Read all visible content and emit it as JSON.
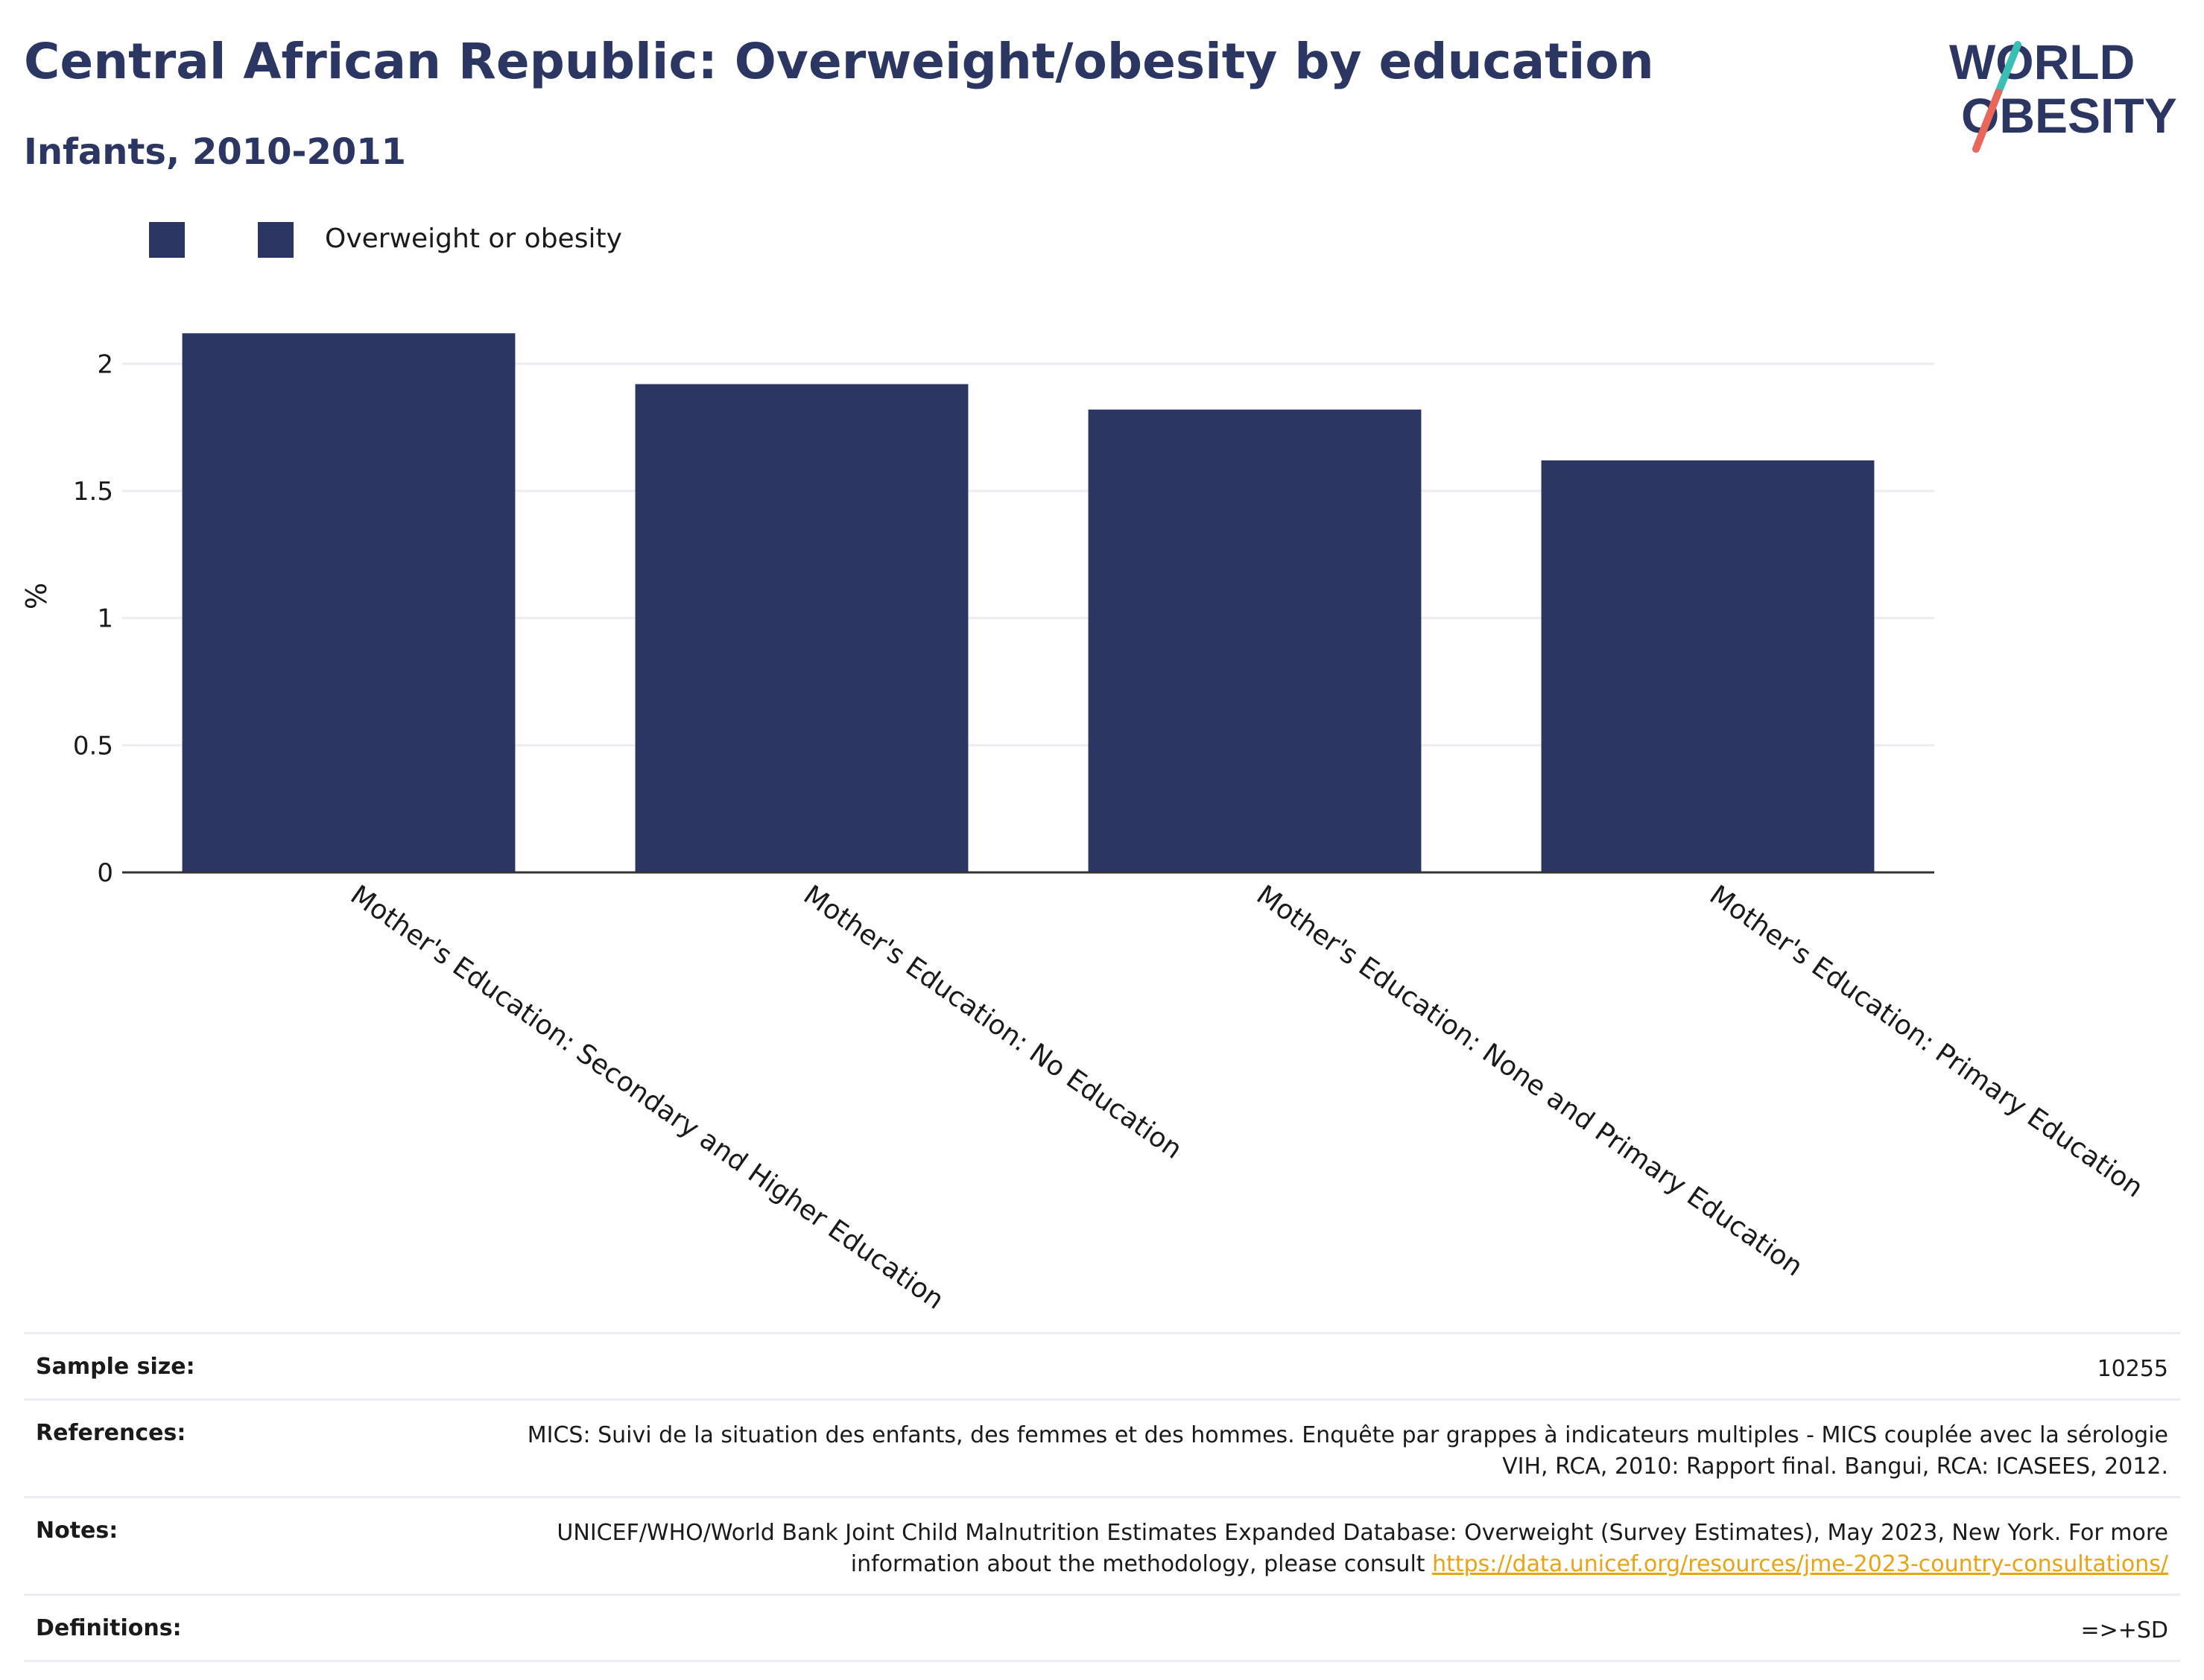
{
  "header": {
    "title": "Central African Republic: Overweight/obesity by education",
    "subtitle": "Infants, 2010-2011"
  },
  "logo": {
    "line1": "WORLD",
    "line2": "OBESITY"
  },
  "colors": {
    "bar": "#2b3663",
    "title": "#2b3663",
    "logo_teal": "#3bbfb5",
    "logo_coral": "#e8675a",
    "link": "#e8a317"
  },
  "legend": {
    "series_label": "Overweight or obesity"
  },
  "chart_data": {
    "type": "bar",
    "categories": [
      "Mother's Education: Secondary and Higher Education",
      "Mother's Education: No Education",
      "Mother's Education: None and Primary Education",
      "Mother's Education: Primary Education"
    ],
    "series": [
      {
        "name": "Overweight or obesity",
        "values": [
          2.12,
          1.92,
          1.82,
          1.62
        ]
      }
    ],
    "ylabel": "%",
    "xlabel": "",
    "ylim": [
      0,
      2.2
    ],
    "yticks": [
      0,
      0.5,
      1,
      1.5,
      2
    ],
    "ytick_labels": [
      "0",
      "0.5",
      "1",
      "1.5",
      "2"
    ],
    "grid": true,
    "legend_position": "top-left"
  },
  "footer": {
    "sample_size_label": "Sample size:",
    "sample_size_value": "10255",
    "references_label": "References:",
    "references_value": "MICS: Suivi de la situation des enfants, des femmes et des hommes. Enquête par grappes à indicateurs multiples - MICS couplée avec la sérologie VIH, RCA, 2010: Rapport final. Bangui, RCA: ICASEES, 2012.",
    "notes_label": "Notes:",
    "notes_value": "UNICEF/WHO/World Bank Joint Child Malnutrition Estimates Expanded Database: Overweight (Survey Estimates), May 2023, New York. For more information about the methodology, please consult",
    "notes_link": "https://data.unicef.org/resources/jme-2023-country-consultations/",
    "definitions_label": "Definitions:",
    "definitions_value": "=>+SD"
  }
}
